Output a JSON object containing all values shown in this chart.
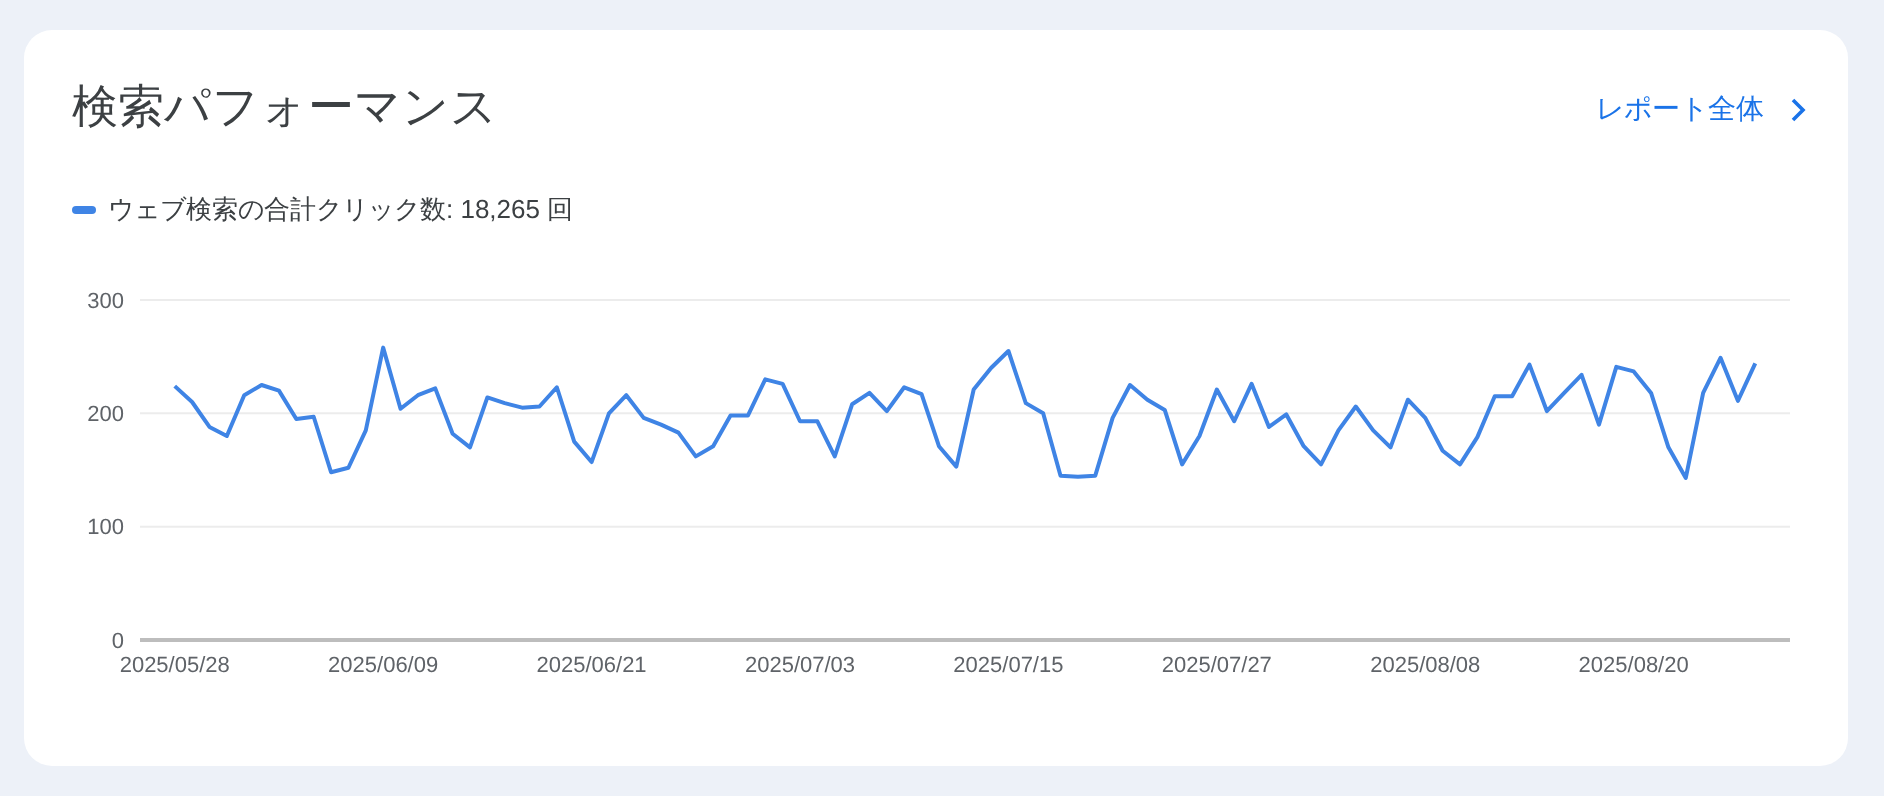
{
  "chart_data": {
    "type": "line",
    "title": "検索パフォーマンス",
    "annotations": [
      "レポート全体"
    ],
    "x": [
      "2025-05-28",
      "2025-05-29",
      "2025-05-30",
      "2025-05-31",
      "2025-06-01",
      "2025-06-02",
      "2025-06-03",
      "2025-06-04",
      "2025-06-05",
      "2025-06-06",
      "2025-06-07",
      "2025-06-08",
      "2025-06-09",
      "2025-06-10",
      "2025-06-11",
      "2025-06-12",
      "2025-06-13",
      "2025-06-14",
      "2025-06-15",
      "2025-06-16",
      "2025-06-17",
      "2025-06-18",
      "2025-06-19",
      "2025-06-20",
      "2025-06-21",
      "2025-06-22",
      "2025-06-23",
      "2025-06-24",
      "2025-06-25",
      "2025-06-26",
      "2025-06-27",
      "2025-06-28",
      "2025-06-29",
      "2025-06-30",
      "2025-07-01",
      "2025-07-02",
      "2025-07-03",
      "2025-07-04",
      "2025-07-05",
      "2025-07-06",
      "2025-07-07",
      "2025-07-08",
      "2025-07-09",
      "2025-07-10",
      "2025-07-11",
      "2025-07-12",
      "2025-07-13",
      "2025-07-14",
      "2025-07-15",
      "2025-07-16",
      "2025-07-17",
      "2025-07-18",
      "2025-07-19",
      "2025-07-20",
      "2025-07-21",
      "2025-07-22",
      "2025-07-23",
      "2025-07-24",
      "2025-07-25",
      "2025-07-26",
      "2025-07-27",
      "2025-07-28",
      "2025-07-29",
      "2025-07-30",
      "2025-07-31",
      "2025-08-01",
      "2025-08-02",
      "2025-08-03",
      "2025-08-04",
      "2025-08-05",
      "2025-08-06",
      "2025-08-07",
      "2025-08-08",
      "2025-08-09",
      "2025-08-10",
      "2025-08-11",
      "2025-08-12",
      "2025-08-13",
      "2025-08-14",
      "2025-08-15",
      "2025-08-16",
      "2025-08-17",
      "2025-08-18",
      "2025-08-19",
      "2025-08-20",
      "2025-08-21",
      "2025-08-22",
      "2025-08-23",
      "2025-08-24",
      "2025-08-25",
      "2025-08-26",
      "2025-08-27"
    ],
    "series": [
      {
        "name": "ウェブ検索の合計クリック数: 18,265 回",
        "color": "#3f84e5",
        "values": [
          224,
          210,
          188,
          180,
          216,
          225,
          220,
          195,
          197,
          148,
          152,
          185,
          258,
          204,
          216,
          222,
          182,
          170,
          214,
          209,
          205,
          206,
          223,
          175,
          157,
          200,
          216,
          196,
          190,
          183,
          162,
          171,
          198,
          198,
          230,
          226,
          193,
          193,
          162,
          208,
          218,
          202,
          223,
          217,
          171,
          153,
          221,
          240,
          255,
          209,
          200,
          145,
          144,
          145,
          196,
          225,
          212,
          203,
          155,
          180,
          221,
          193,
          226,
          188,
          199,
          171,
          155,
          185,
          206,
          185,
          170,
          212,
          196,
          167,
          155,
          179,
          215,
          215,
          243,
          202,
          218,
          234,
          190,
          241,
          237,
          218,
          170,
          143,
          218,
          249,
          211,
          244
        ]
      }
    ],
    "xlim": [
      "2025-05-26",
      "2025-08-29"
    ],
    "xticks": [
      {
        "value": "2025-05-28",
        "label": "2025/05/28"
      },
      {
        "value": "2025-06-09",
        "label": "2025/06/09"
      },
      {
        "value": "2025-06-21",
        "label": "2025/06/21"
      },
      {
        "value": "2025-07-03",
        "label": "2025/07/03"
      },
      {
        "value": "2025-07-15",
        "label": "2025/07/15"
      },
      {
        "value": "2025-07-27",
        "label": "2025/07/27"
      },
      {
        "value": "2025-08-08",
        "label": "2025/08/08"
      },
      {
        "value": "2025-08-20",
        "label": "2025/08/20"
      }
    ],
    "ylim": [
      0,
      300
    ],
    "yticks": [
      0,
      100,
      200,
      300
    ],
    "grid": "y",
    "legend": "top left",
    "marker": "none",
    "line_style": "solid"
  }
}
